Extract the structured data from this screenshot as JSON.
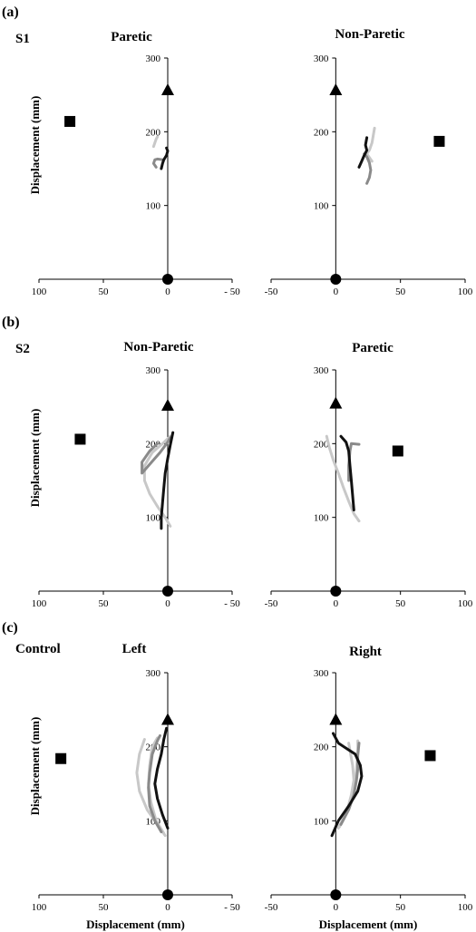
{
  "chart_data": [
    {
      "type": "line",
      "panel_label": "(a)",
      "subject_label": "S1",
      "title": "Paretic",
      "xlabel": "",
      "ylabel": "Displacement (mm)",
      "x_reversed": true,
      "xlim": [
        100,
        -50
      ],
      "ylim": [
        0,
        300
      ],
      "x_ticks": [
        "100",
        "50",
        "0",
        "- 50"
      ],
      "y_ticks": [
        "100",
        "200",
        "300"
      ],
      "start_marker": {
        "x": 0,
        "y": 0
      },
      "target_marker": {
        "x": 0,
        "y": 257
      },
      "obstacle_marker": {
        "x": 76,
        "y": 214
      },
      "series": [
        {
          "color": "#c8c8c8",
          "points": [
            [
              11,
              180
            ],
            [
              10,
              185
            ],
            [
              9,
              190
            ],
            [
              8,
              193
            ]
          ]
        },
        {
          "color": "#8a8a8a",
          "points": [
            [
              9,
              152
            ],
            [
              11,
              157
            ],
            [
              10,
              162
            ],
            [
              8,
              163
            ],
            [
              4,
              162
            ]
          ]
        },
        {
          "color": "#111111",
          "points": [
            [
              5,
              150
            ],
            [
              4,
              157
            ],
            [
              3,
              162
            ],
            [
              1,
              168
            ],
            [
              0,
              174
            ],
            [
              1,
              178
            ]
          ]
        }
      ]
    },
    {
      "type": "line",
      "panel_label": "",
      "subject_label": "",
      "title": "Non-Paretic",
      "xlabel": "",
      "ylabel": "",
      "x_reversed": false,
      "xlim": [
        -50,
        100
      ],
      "ylim": [
        0,
        300
      ],
      "x_ticks": [
        "-50",
        "0",
        "50",
        "100"
      ],
      "y_ticks": [
        "100",
        "200",
        "300"
      ],
      "start_marker": {
        "x": 0,
        "y": 0
      },
      "target_marker": {
        "x": 0,
        "y": 257
      },
      "obstacle_marker": {
        "x": 80,
        "y": 187
      },
      "series": [
        {
          "color": "#c8c8c8",
          "points": [
            [
              30,
              205
            ],
            [
              29,
              195
            ],
            [
              28,
              185
            ],
            [
              26,
              175
            ],
            [
              24,
              170
            ],
            [
              28,
              160
            ]
          ]
        },
        {
          "color": "#8a8a8a",
          "points": [
            [
              24,
              130
            ],
            [
              26,
              138
            ],
            [
              27,
              148
            ],
            [
              26,
              158
            ],
            [
              24,
              166
            ],
            [
              22,
              170
            ]
          ]
        },
        {
          "color": "#111111",
          "points": [
            [
              18,
              152
            ],
            [
              20,
              160
            ],
            [
              22,
              168
            ],
            [
              24,
              175
            ],
            [
              23,
              182
            ],
            [
              24,
              192
            ]
          ]
        }
      ]
    },
    {
      "type": "line",
      "panel_label": "(b)",
      "subject_label": "S2",
      "title": "Non-Paretic",
      "xlabel": "",
      "ylabel": "Displacement (mm)",
      "x_reversed": true,
      "xlim": [
        100,
        -50
      ],
      "ylim": [
        0,
        300
      ],
      "x_ticks": [
        "100",
        "50",
        "0",
        "- 50"
      ],
      "y_ticks": [
        "100",
        "200",
        "300"
      ],
      "start_marker": {
        "x": 0,
        "y": 0
      },
      "target_marker": {
        "x": 0,
        "y": 252
      },
      "obstacle_marker": {
        "x": 68,
        "y": 206
      },
      "series": [
        {
          "color": "#c8c8c8",
          "points": [
            [
              -2,
              88
            ],
            [
              2,
              100
            ],
            [
              8,
              115
            ],
            [
              14,
              132
            ],
            [
              18,
              150
            ],
            [
              18,
              170
            ],
            [
              12,
              188
            ],
            [
              4,
              200
            ],
            [
              -2,
              210
            ]
          ]
        },
        {
          "color": "#8a8a8a",
          "points": [
            [
              8,
              200
            ],
            [
              14,
              190
            ],
            [
              20,
              175
            ],
            [
              20,
              160
            ],
            [
              14,
              172
            ],
            [
              6,
              188
            ],
            [
              0,
              202
            ],
            [
              -2,
              208
            ]
          ]
        },
        {
          "color": "#111111",
          "points": [
            [
              5,
              85
            ],
            [
              5,
              100
            ],
            [
              4,
              120
            ],
            [
              3,
              140
            ],
            [
              2,
              160
            ],
            [
              0,
              180
            ],
            [
              -2,
              198
            ],
            [
              -4,
              215
            ]
          ]
        }
      ]
    },
    {
      "type": "line",
      "panel_label": "",
      "subject_label": "",
      "title": "Paretic",
      "xlabel": "",
      "ylabel": "",
      "x_reversed": false,
      "xlim": [
        -50,
        100
      ],
      "ylim": [
        0,
        300
      ],
      "x_ticks": [
        "-50",
        "0",
        "50",
        "100"
      ],
      "y_ticks": [
        "100",
        "200",
        "300"
      ],
      "start_marker": {
        "x": 0,
        "y": 0
      },
      "target_marker": {
        "x": 0,
        "y": 255
      },
      "obstacle_marker": {
        "x": 48,
        "y": 190
      },
      "series": [
        {
          "color": "#c8c8c8",
          "points": [
            [
              18,
              95
            ],
            [
              14,
              105
            ],
            [
              10,
              122
            ],
            [
              6,
              140
            ],
            [
              2,
              160
            ],
            [
              -2,
              178
            ],
            [
              -5,
              195
            ],
            [
              -7,
              210
            ]
          ]
        },
        {
          "color": "#8a8a8a",
          "points": [
            [
              10,
              150
            ],
            [
              10,
              170
            ],
            [
              11,
              190
            ],
            [
              12,
              200
            ],
            [
              18,
              199
            ]
          ]
        },
        {
          "color": "#111111",
          "points": [
            [
              14,
              110
            ],
            [
              13,
              130
            ],
            [
              12,
              150
            ],
            [
              11,
              170
            ],
            [
              10,
              190
            ],
            [
              8,
              202
            ],
            [
              4,
              210
            ]
          ]
        }
      ]
    },
    {
      "type": "line",
      "panel_label": "(c)",
      "subject_label": "Control",
      "title": "Left",
      "xlabel": "Displacement (mm)",
      "ylabel": "Displacement (mm)",
      "x_reversed": true,
      "xlim": [
        100,
        -50
      ],
      "ylim": [
        0,
        300
      ],
      "x_ticks": [
        "100",
        "50",
        "0",
        "- 50"
      ],
      "y_ticks": [
        "100",
        "200",
        "300"
      ],
      "start_marker": {
        "x": 0,
        "y": 0
      },
      "target_marker": {
        "x": 0,
        "y": 237
      },
      "obstacle_marker": {
        "x": 83,
        "y": 184
      },
      "series": [
        {
          "color": "#c8c8c8",
          "points": [
            [
              2,
              80
            ],
            [
              8,
              95
            ],
            [
              16,
              115
            ],
            [
              22,
              140
            ],
            [
              24,
              165
            ],
            [
              22,
              190
            ],
            [
              18,
              210
            ]
          ]
        },
        {
          "color": "#c8c8c8",
          "points": [
            [
              3,
              83
            ],
            [
              9,
              100
            ],
            [
              13,
              125
            ],
            [
              15,
              150
            ],
            [
              14,
              175
            ],
            [
              12,
              200
            ],
            [
              8,
              212
            ]
          ]
        },
        {
          "color": "#8a8a8a",
          "points": [
            [
              5,
              85
            ],
            [
              10,
              100
            ],
            [
              14,
              120
            ],
            [
              15,
              145
            ],
            [
              14,
              165
            ],
            [
              12,
              190
            ],
            [
              8,
              208
            ],
            [
              6,
              215
            ]
          ]
        },
        {
          "color": "#111111",
          "points": [
            [
              0,
              90
            ],
            [
              4,
              108
            ],
            [
              8,
              130
            ],
            [
              10,
              150
            ],
            [
              8,
              170
            ],
            [
              5,
              190
            ],
            [
              3,
              210
            ],
            [
              1,
              225
            ]
          ]
        }
      ]
    },
    {
      "type": "line",
      "panel_label": "",
      "subject_label": "",
      "title": "Right",
      "xlabel": "Displacement (mm)",
      "ylabel": "",
      "x_reversed": false,
      "xlim": [
        -50,
        100
      ],
      "ylim": [
        0,
        300
      ],
      "x_ticks": [
        "-50",
        "0",
        "50",
        "100"
      ],
      "y_ticks": [
        "100",
        "200",
        "300"
      ],
      "start_marker": {
        "x": 0,
        "y": 0
      },
      "target_marker": {
        "x": 0,
        "y": 237
      },
      "obstacle_marker": {
        "x": 73,
        "y": 188
      },
      "series": [
        {
          "color": "#c8c8c8",
          "points": [
            [
              2,
              90
            ],
            [
              8,
              110
            ],
            [
              13,
              130
            ],
            [
              15,
              150
            ],
            [
              16,
              170
            ],
            [
              17,
              190
            ],
            [
              17,
              208
            ]
          ]
        },
        {
          "color": "#c8c8c8",
          "points": [
            [
              3,
              92
            ],
            [
              9,
              115
            ],
            [
              12,
              135
            ],
            [
              14,
              155
            ],
            [
              13,
              175
            ],
            [
              11,
              195
            ],
            [
              10,
              205
            ]
          ]
        },
        {
          "color": "#8a8a8a",
          "points": [
            [
              4,
              95
            ],
            [
              10,
              115
            ],
            [
              14,
              135
            ],
            [
              16,
              155
            ],
            [
              17,
              170
            ],
            [
              17,
              188
            ],
            [
              18,
              205
            ]
          ]
        },
        {
          "color": "#111111",
          "points": [
            [
              -3,
              80
            ],
            [
              2,
              100
            ],
            [
              10,
              120
            ],
            [
              17,
              140
            ],
            [
              20,
              160
            ],
            [
              19,
              175
            ],
            [
              15,
              190
            ],
            [
              8,
              198
            ],
            [
              2,
              205
            ],
            [
              -2,
              218
            ]
          ]
        }
      ]
    }
  ]
}
